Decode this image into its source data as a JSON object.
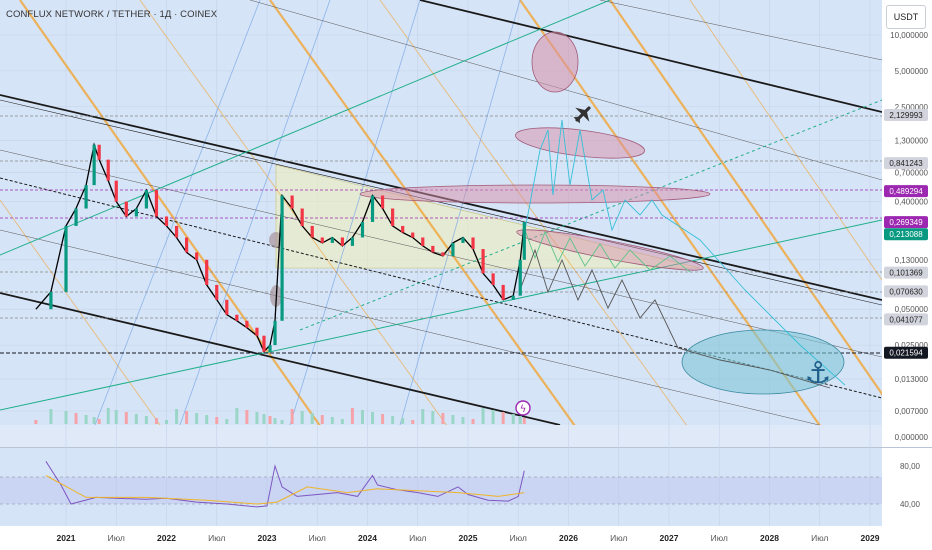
{
  "chart_data": {
    "type": "line",
    "title": "CONFLUX NETWORK / TETHER · 1Д · COINEX",
    "currency_button": "USDT",
    "y_scale": "log",
    "y_ticks": [
      "10,000000",
      "5,000000",
      "2,500000",
      "1,300000",
      "0,700000",
      "0,400000",
      "0,130000",
      "0,050000",
      "0,025000",
      "0,013000",
      "0,007000"
    ],
    "price_labels": [
      {
        "value": "2,129993",
        "color": "#d1d4dc",
        "text_color": "#222"
      },
      {
        "value": "0,841243",
        "color": "#d1d4dc",
        "text_color": "#222"
      },
      {
        "value": "0,489294",
        "color": "#9c27b0",
        "text_color": "#fff"
      },
      {
        "value": "0,269349",
        "color": "#9c27b0",
        "text_color": "#fff"
      },
      {
        "value": "0,213088",
        "color": "#089981",
        "text_color": "#fff"
      },
      {
        "value": "0,101369",
        "color": "#d1d4dc",
        "text_color": "#222"
      },
      {
        "value": "0,070630",
        "color": "#d1d4dc",
        "text_color": "#222"
      },
      {
        "value": "0,041077",
        "color": "#d1d4dc",
        "text_color": "#222"
      },
      {
        "value": "0,021594",
        "color": "#131722",
        "text_color": "#fff"
      }
    ],
    "volume_zero_label": "0,000000",
    "rsi_ticks": [
      "80,00",
      "40,00"
    ],
    "x_ticks": [
      "2021",
      "Июл",
      "2022",
      "Июл",
      "2023",
      "Июл",
      "2024",
      "Июл",
      "2025",
      "Июл",
      "2026",
      "Июл",
      "2027",
      "Июл",
      "2028",
      "Июл",
      "2029"
    ],
    "price_series": {
      "name": "CFX/USDT",
      "x": [
        2020.7,
        2020.85,
        2021.0,
        2021.1,
        2021.2,
        2021.28,
        2021.33,
        2021.42,
        2021.5,
        2021.6,
        2021.7,
        2021.8,
        2021.9,
        2022.0,
        2022.1,
        2022.2,
        2022.3,
        2022.4,
        2022.5,
        2022.6,
        2022.7,
        2022.8,
        2022.9,
        2022.97,
        2023.03,
        2023.08,
        2023.15,
        2023.25,
        2023.35,
        2023.45,
        2023.55,
        2023.65,
        2023.75,
        2023.85,
        2023.95,
        2024.05,
        2024.15,
        2024.25,
        2024.35,
        2024.45,
        2024.55,
        2024.65,
        2024.75,
        2024.85,
        2024.95,
        2025.05,
        2025.15,
        2025.25,
        2025.35,
        2025.45,
        2025.52,
        2025.56
      ],
      "values": [
        0.05,
        0.07,
        0.25,
        0.35,
        0.55,
        1.2,
        0.9,
        0.6,
        0.4,
        0.3,
        0.35,
        0.5,
        0.3,
        0.25,
        0.2,
        0.15,
        0.13,
        0.08,
        0.06,
        0.045,
        0.04,
        0.035,
        0.03,
        0.022,
        0.025,
        0.04,
        0.45,
        0.35,
        0.25,
        0.2,
        0.18,
        0.2,
        0.17,
        0.2,
        0.27,
        0.45,
        0.35,
        0.25,
        0.22,
        0.2,
        0.17,
        0.15,
        0.14,
        0.18,
        0.2,
        0.16,
        0.1,
        0.08,
        0.06,
        0.065,
        0.13,
        0.27
      ]
    },
    "rsi_series": {
      "x": [
        2020.8,
        2020.95,
        2021.05,
        2021.3,
        2021.5,
        2021.8,
        2022.0,
        2022.3,
        2022.6,
        2022.9,
        2023.0,
        2023.08,
        2023.15,
        2023.3,
        2023.5,
        2023.7,
        2023.9,
        2024.05,
        2024.1,
        2024.3,
        2024.5,
        2024.7,
        2024.9,
        2025.0,
        2025.2,
        2025.4,
        2025.5,
        2025.56
      ],
      "values": [
        85,
        60,
        40,
        47,
        46,
        45,
        46,
        42,
        40,
        37,
        38,
        80,
        58,
        48,
        50,
        52,
        48,
        70,
        60,
        55,
        52,
        48,
        58,
        50,
        44,
        43,
        48,
        75
      ]
    },
    "rsi_ma_series": {
      "x": [
        2020.8,
        2021.2,
        2021.8,
        2022.4,
        2022.9,
        2023.1,
        2023.4,
        2023.8,
        2024.1,
        2024.5,
        2024.9,
        2025.3,
        2025.56
      ],
      "values": [
        70,
        47,
        47,
        44,
        40,
        42,
        58,
        52,
        56,
        54,
        52,
        48,
        52
      ]
    }
  }
}
